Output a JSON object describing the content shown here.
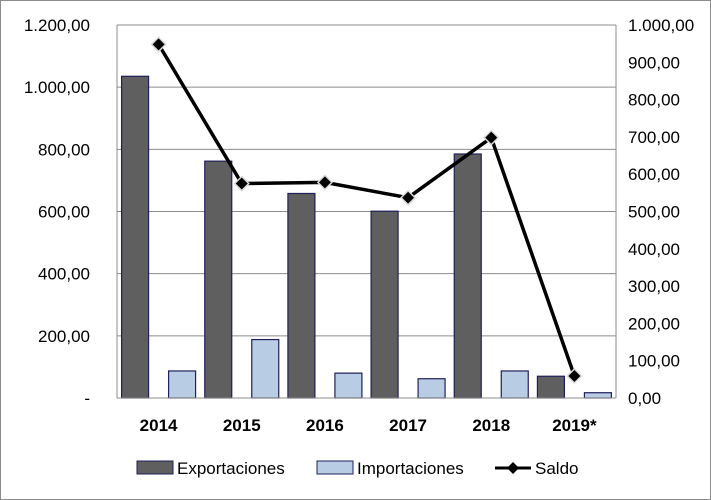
{
  "chart_data": {
    "type": "bar",
    "categories": [
      "2014",
      "2015",
      "2016",
      "2017",
      "2018",
      "2019*"
    ],
    "series": [
      {
        "name": "Exportaciones",
        "kind": "bar",
        "axis": "left",
        "values": [
          1035,
          762,
          658,
          601,
          785,
          70
        ],
        "color": "#5f5f5f"
      },
      {
        "name": "Importaciones",
        "kind": "bar",
        "axis": "left",
        "values": [
          87,
          188,
          80,
          62,
          87,
          17
        ],
        "color": "#b8cce4"
      },
      {
        "name": "Saldo",
        "kind": "line",
        "axis": "right",
        "values": [
          948,
          575,
          578,
          537,
          698,
          59
        ],
        "color": "#000000"
      }
    ],
    "left_axis": {
      "ylim": [
        0,
        1200
      ],
      "ticks": [
        "-",
        "200,00",
        "400,00",
        "600,00",
        "800,00",
        "1.000,00",
        "1.200,00"
      ]
    },
    "right_axis": {
      "ylim": [
        0,
        1000
      ],
      "ticks": [
        "0,00",
        "100,00",
        "200,00",
        "300,00",
        "400,00",
        "500,00",
        "600,00",
        "700,00",
        "800,00",
        "900,00",
        "1.000,00"
      ]
    },
    "grid": true,
    "legend": "bottom"
  }
}
